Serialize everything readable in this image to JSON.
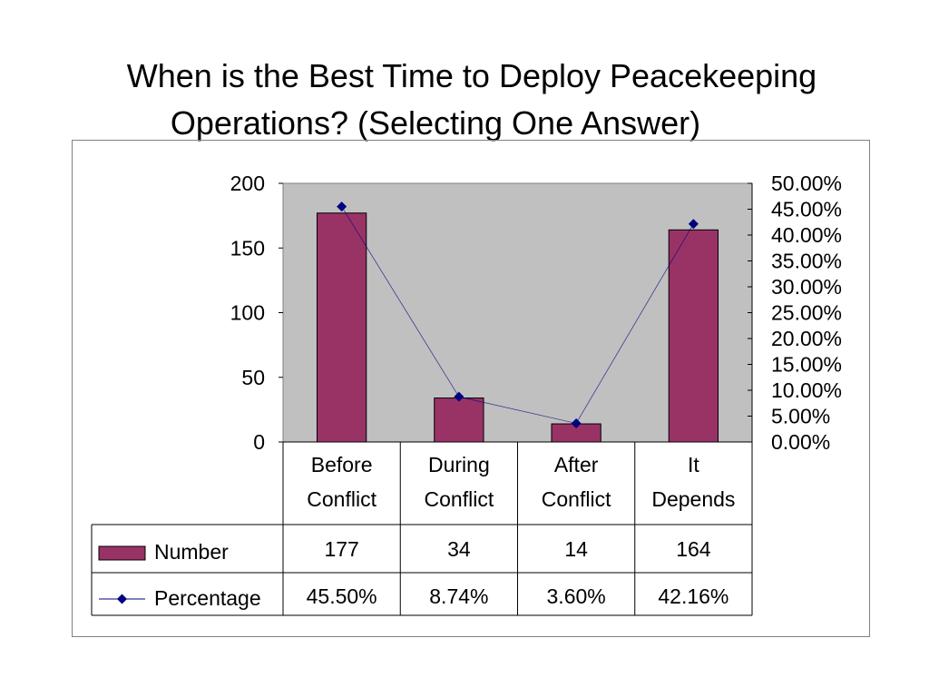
{
  "slide": {
    "title_line1": "When is the Best Time to Deploy Peacekeeping",
    "title_line2": "Operations? (Selecting One Answer)"
  },
  "chart_data": {
    "type": "bar",
    "categories": [
      [
        "Before",
        "Conflict"
      ],
      [
        "During",
        "Conflict"
      ],
      [
        "After",
        "Conflict"
      ],
      [
        "It",
        "Depends"
      ]
    ],
    "series": [
      {
        "name": "Number",
        "type": "bar",
        "axis": "left",
        "values": [
          177,
          34,
          14,
          164
        ],
        "labels": [
          "177",
          "34",
          "14",
          "164"
        ],
        "color": "#993366"
      },
      {
        "name": "Percentage",
        "type": "line",
        "axis": "right",
        "values": [
          45.5,
          8.74,
          3.6,
          42.16
        ],
        "labels": [
          "45.50%",
          "8.74%",
          "3.60%",
          "42.16%"
        ],
        "color": "#000080"
      }
    ],
    "y_left": {
      "min": 0,
      "max": 200,
      "ticks": [
        0,
        50,
        100,
        150,
        200
      ],
      "tick_labels": [
        "0",
        "50",
        "100",
        "150",
        "200"
      ]
    },
    "y_right": {
      "min": 0,
      "max": 50,
      "ticks": [
        0,
        5,
        10,
        15,
        20,
        25,
        30,
        35,
        40,
        45,
        50
      ],
      "tick_labels": [
        "0.00%",
        "5.00%",
        "10.00%",
        "15.00%",
        "20.00%",
        "25.00%",
        "30.00%",
        "35.00%",
        "40.00%",
        "45.00%",
        "50.00%"
      ]
    },
    "plot_background": "#c0c0c0",
    "data_table": true,
    "legend": "data-table"
  }
}
